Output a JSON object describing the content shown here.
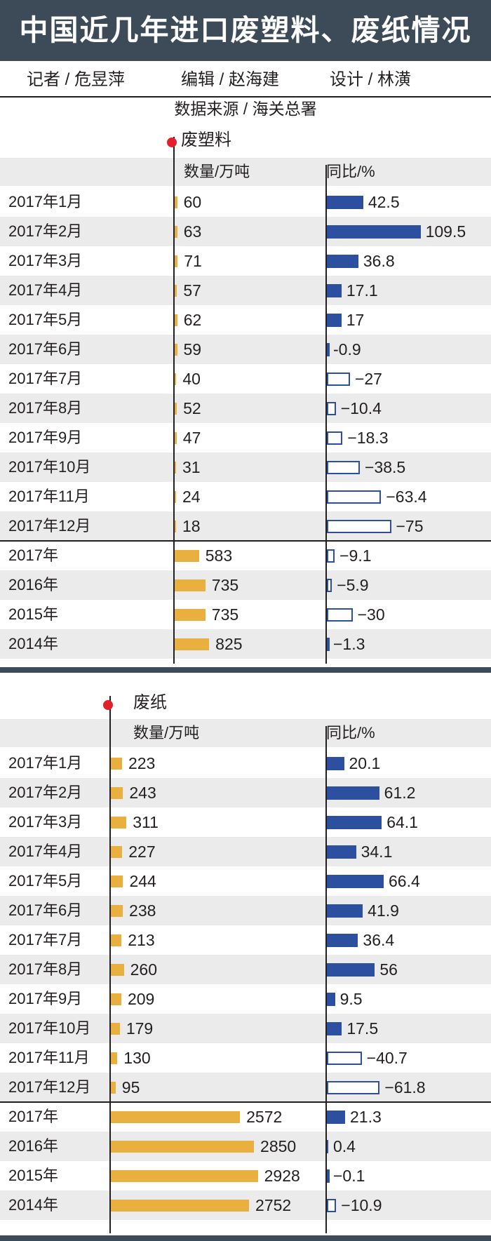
{
  "title": "中国近几年进口废塑料、废纸情况",
  "credits": {
    "reporter": "记者 / 危昱萍",
    "editor": "编辑 / 赵海建",
    "designer": "设计 / 林潢"
  },
  "source": "数据来源 / 海关总署",
  "colors": {
    "header_bg": "#3d4b58",
    "volume_bar": "#e9b03f",
    "yoy_bar": "#2d4fa0",
    "marker": "#e0212b",
    "row_band": "#ebebeb"
  },
  "chart_data": [
    {
      "type": "bar",
      "title": "废塑料",
      "volume_label": "数量/万吨",
      "yoy_label": "同比/%",
      "categories": [
        "2017年1月",
        "2017年2月",
        "2017年3月",
        "2017年4月",
        "2017年5月",
        "2017年6月",
        "2017年7月",
        "2017年8月",
        "2017年9月",
        "2017年10月",
        "2017年11月",
        "2017年12月",
        "2017年",
        "2016年",
        "2015年",
        "2014年"
      ],
      "series": [
        {
          "name": "数量/万吨",
          "values": [
            60,
            63,
            71,
            57,
            62,
            59,
            40,
            52,
            47,
            31,
            24,
            18,
            583,
            735,
            735,
            825
          ]
        },
        {
          "name": "同比/%",
          "values": [
            42.5,
            109.5,
            36.8,
            17.1,
            17,
            -0.9,
            -27,
            -10.4,
            -18.3,
            -38.5,
            -63.4,
            -75,
            -9.1,
            -5.9,
            -30,
            -1.3
          ]
        }
      ],
      "value_labels": {
        "volume": [
          "60",
          "63",
          "71",
          "57",
          "62",
          "59",
          "40",
          "52",
          "47",
          "31",
          "24",
          "18",
          "583",
          "735",
          "735",
          "825"
        ],
        "yoy": [
          "42.5",
          "109.5",
          "36.8",
          "17.1",
          "17",
          "-0.9",
          "−27",
          "−10.4",
          "−18.3",
          "−38.5",
          "−63.4",
          "−75",
          "−9.1",
          "−5.9",
          "−30",
          "−1.3"
        ]
      },
      "monthly_count": 12
    },
    {
      "type": "bar",
      "title": "废纸",
      "volume_label": "数量/万吨",
      "yoy_label": "同比/%",
      "categories": [
        "2017年1月",
        "2017年2月",
        "2017年3月",
        "2017年4月",
        "2017年5月",
        "2017年6月",
        "2017年7月",
        "2017年8月",
        "2017年9月",
        "2017年10月",
        "2017年11月",
        "2017年12月",
        "2017年",
        "2016年",
        "2015年",
        "2014年"
      ],
      "series": [
        {
          "name": "数量/万吨",
          "values": [
            223,
            243,
            311,
            227,
            244,
            238,
            213,
            260,
            209,
            179,
            130,
            95,
            2572,
            2850,
            2928,
            2752
          ]
        },
        {
          "name": "同比/%",
          "values": [
            20.1,
            61.2,
            64.1,
            34.1,
            66.4,
            41.9,
            36.4,
            56,
            9.5,
            17.5,
            -40.7,
            -61.8,
            21.3,
            0.4,
            -0.1,
            -10.9
          ]
        }
      ],
      "value_labels": {
        "volume": [
          "223",
          "243",
          "311",
          "227",
          "244",
          "238",
          "213",
          "260",
          "209",
          "179",
          "130",
          "95",
          "2572",
          "2850",
          "2928",
          "2752"
        ],
        "yoy": [
          "20.1",
          "61.2",
          "64.1",
          "34.1",
          "66.4",
          "41.9",
          "36.4",
          "56",
          "9.5",
          "17.5",
          "−40.7",
          "−61.8",
          "21.3",
          "0.4",
          "−0.1",
          "−10.9"
        ]
      },
      "monthly_count": 12
    }
  ]
}
